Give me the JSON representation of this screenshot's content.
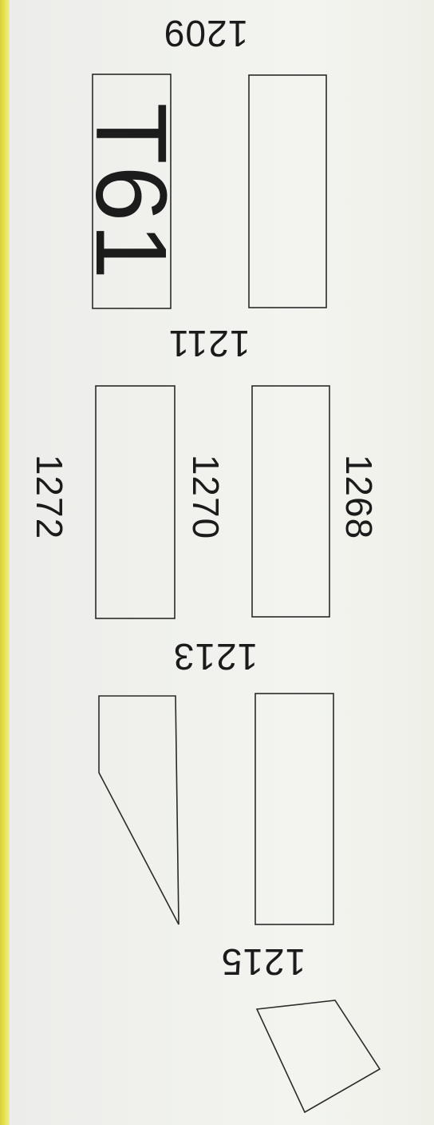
{
  "diagram": {
    "panel_labels": [
      {
        "id": "1209",
        "text": "1209"
      },
      {
        "id": "1211",
        "text": "1211"
      },
      {
        "id": "1213",
        "text": "1213"
      },
      {
        "id": "1215",
        "text": "1215"
      },
      {
        "id": "1268",
        "text": "1268"
      },
      {
        "id": "1270",
        "text": "1270"
      },
      {
        "id": "1272",
        "text": "1272"
      }
    ],
    "tag_box": {
      "text": "T61"
    }
  },
  "colors": {
    "paper": "#f1f2ee",
    "ink": "#2a2a2a",
    "edge_strip": "#e3dd48"
  }
}
